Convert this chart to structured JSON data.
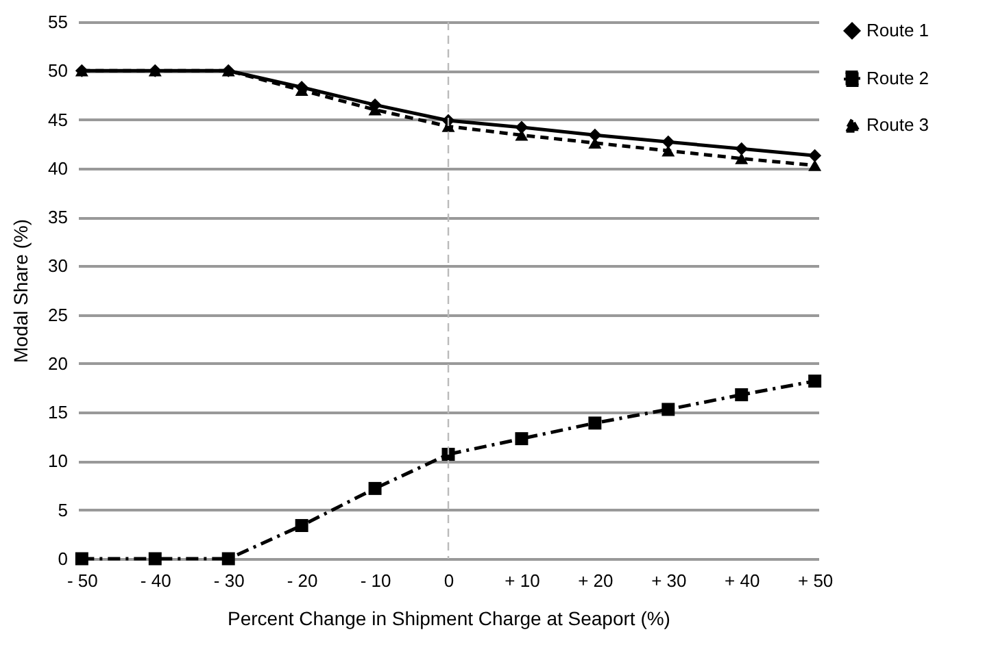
{
  "chart_data": {
    "type": "line",
    "xlabel": "Percent Change in Shipment Charge at Seaport (%)",
    "ylabel": "Modal Share (%)",
    "categories": [
      "- 50",
      "- 40",
      "- 30",
      "- 20",
      "- 10",
      "0",
      "+ 10",
      "+ 20",
      "+ 30",
      "+ 40",
      "+ 50"
    ],
    "series": [
      {
        "name": "Route 1",
        "color": "#000000",
        "marker": "diamond",
        "line_style": "solid",
        "values": [
          50,
          50,
          50,
          48.3,
          46.5,
          44.9,
          44.2,
          43.4,
          42.7,
          42.0,
          41.3
        ]
      },
      {
        "name": "Route 2",
        "color": "#000000",
        "marker": "square",
        "line_style": "dashdot",
        "values": [
          0,
          0,
          0,
          3.4,
          7.2,
          10.7,
          12.3,
          13.9,
          15.3,
          16.8,
          18.2
        ]
      },
      {
        "name": "Route 3",
        "color": "#000000",
        "marker": "triangle",
        "line_style": "dashed",
        "values": [
          50,
          50,
          50,
          48,
          46,
          44.3,
          43.4,
          42.6,
          41.8,
          41.0,
          40.3
        ]
      }
    ],
    "ylim": [
      0,
      55
    ],
    "yticks": [
      0,
      5,
      10,
      15,
      20,
      25,
      30,
      35,
      40,
      45,
      50,
      55
    ],
    "grid": "y",
    "legend": "right",
    "ref_lines": [
      {
        "axis": "x",
        "value": "0",
        "color": "#bbbbbb",
        "line_style": "dashed"
      }
    ]
  }
}
